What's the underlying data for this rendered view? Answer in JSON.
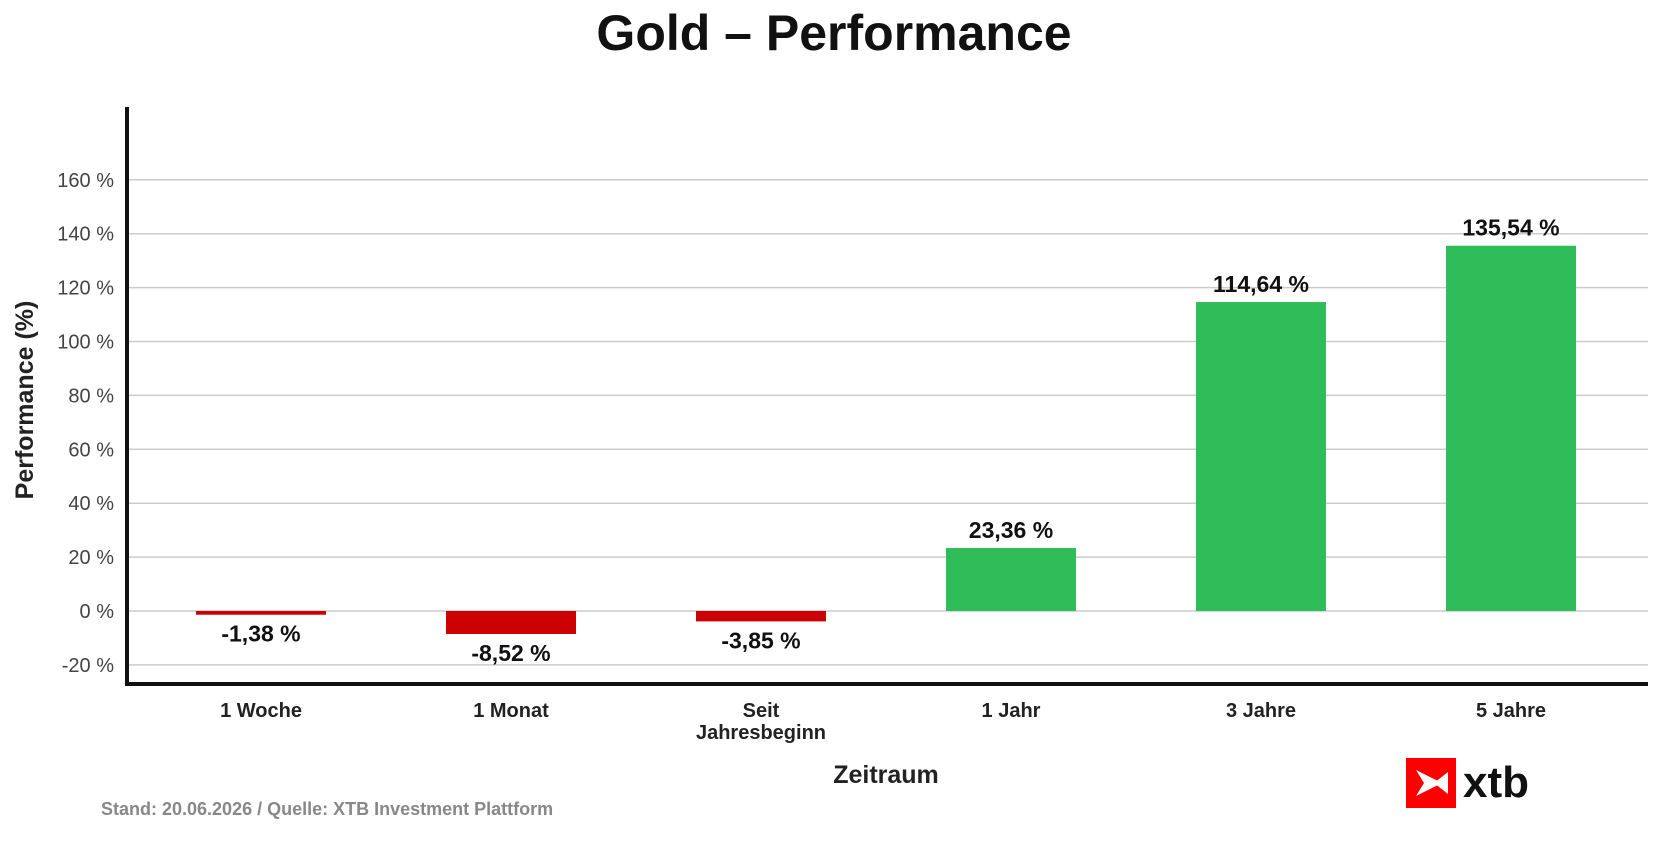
{
  "chart_data": {
    "type": "bar",
    "title": "Gold – Performance",
    "xlabel": "Zeitraum",
    "ylabel": "Performance (%)",
    "categories": [
      "1 Woche",
      "1 Monat",
      "Seit\nJahresbeginn",
      "1 Jahr",
      "3 Jahre",
      "5 Jahre"
    ],
    "values": [
      -1.38,
      -8.52,
      -3.85,
      23.36,
      114.64,
      135.54
    ],
    "value_labels": [
      "-1,38 %",
      "-8,52 %",
      "-3,85 %",
      "23,36 %",
      "114,64 %",
      "135,54 %"
    ],
    "yticks": [
      -20,
      0,
      20,
      40,
      60,
      80,
      100,
      120,
      140,
      160
    ],
    "ytick_labels": [
      "-20 %",
      "0 %",
      "20 %",
      "40 %",
      "60 %",
      "80 %",
      "100 %",
      "120 %",
      "140 %",
      "160 %"
    ],
    "ylim": [
      -27,
      187
    ],
    "grid": true,
    "colors": {
      "positive": "#2ebd59",
      "negative": "#cc0000",
      "grid": "#cccccc",
      "axis": "#111111"
    }
  },
  "footer": {
    "source": "Stand: 20.06.2026 / Quelle: XTB Investment Plattform"
  },
  "logo": {
    "text": "xtb",
    "icon": "xtb-logo-icon",
    "color": "#ff0000"
  }
}
